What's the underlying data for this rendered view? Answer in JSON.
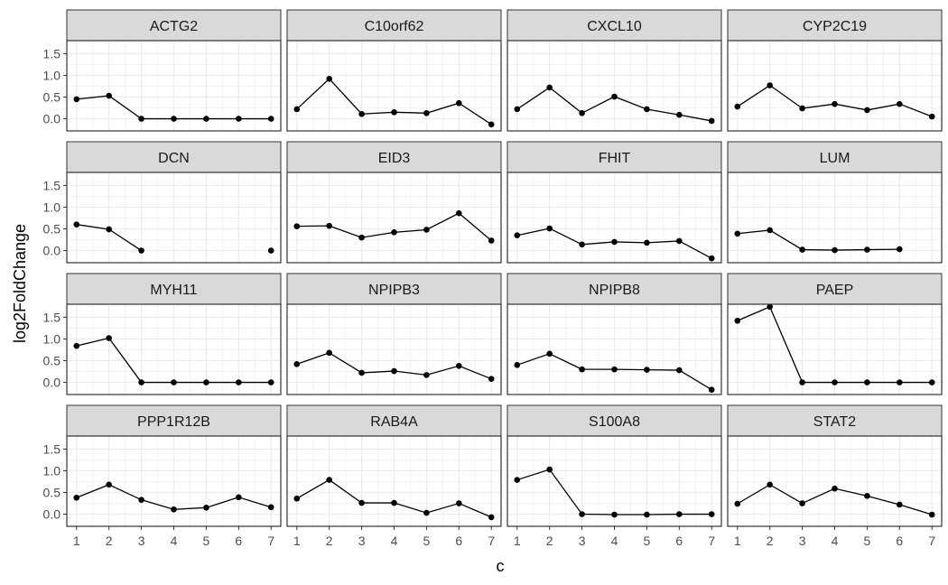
{
  "chart_data": {
    "type": "line",
    "layout": "facet-grid-4x4",
    "xlabel": "c",
    "ylabel": "log2FoldChange",
    "x": [
      1,
      2,
      3,
      4,
      5,
      6,
      7
    ],
    "x_ticks": [
      "1",
      "2",
      "3",
      "4",
      "5",
      "6",
      "7"
    ],
    "y_ticks": [
      "0.0",
      "0.5",
      "1.0",
      "1.5"
    ],
    "y_tick_values": [
      0,
      0.5,
      1.0,
      1.5
    ],
    "xlim": [
      0.7,
      7.3
    ],
    "ylim": [
      -0.28,
      1.8
    ],
    "grid": true,
    "colors": {
      "line": "#000000",
      "strip": "#d9d9d9",
      "grid": "#ebebeb",
      "border": "#333333"
    },
    "series": [
      {
        "name": "ACTG2",
        "values": [
          0.45,
          0.53,
          0.0,
          0.0,
          0.0,
          0.0,
          0.0
        ]
      },
      {
        "name": "C10orf62",
        "values": [
          0.22,
          0.92,
          0.11,
          0.15,
          0.13,
          0.36,
          -0.13
        ]
      },
      {
        "name": "CXCL10",
        "values": [
          0.22,
          0.72,
          0.13,
          0.51,
          0.22,
          0.09,
          -0.05
        ]
      },
      {
        "name": "CYP2C19",
        "values": [
          0.28,
          0.77,
          0.24,
          0.34,
          0.2,
          0.34,
          0.05
        ]
      },
      {
        "name": "DCN",
        "values": [
          0.6,
          0.49,
          0.0,
          null,
          null,
          null,
          0.0
        ]
      },
      {
        "name": "EID3",
        "values": [
          0.56,
          0.57,
          0.3,
          0.42,
          0.48,
          0.86,
          0.23
        ]
      },
      {
        "name": "FHIT",
        "values": [
          0.35,
          0.51,
          0.14,
          0.2,
          0.18,
          0.22,
          -0.18
        ]
      },
      {
        "name": "LUM",
        "values": [
          0.39,
          0.47,
          0.02,
          0.01,
          0.02,
          0.03,
          null
        ]
      },
      {
        "name": "MYH11",
        "values": [
          0.84,
          1.02,
          0.0,
          0.0,
          0.0,
          0.0,
          0.0
        ]
      },
      {
        "name": "NPIPB3",
        "values": [
          0.42,
          0.68,
          0.22,
          0.26,
          0.17,
          0.38,
          0.08
        ]
      },
      {
        "name": "NPIPB8",
        "values": [
          0.4,
          0.66,
          0.3,
          0.3,
          0.29,
          0.28,
          -0.17
        ]
      },
      {
        "name": "PAEP",
        "values": [
          1.42,
          1.74,
          0.0,
          0.0,
          0.0,
          0.0,
          0.0
        ]
      },
      {
        "name": "PPP1R12B",
        "values": [
          0.38,
          0.68,
          0.33,
          0.11,
          0.15,
          0.39,
          0.16
        ]
      },
      {
        "name": "RAB4A",
        "values": [
          0.36,
          0.79,
          0.26,
          0.26,
          0.03,
          0.25,
          -0.07
        ]
      },
      {
        "name": "S100A8",
        "values": [
          0.79,
          1.03,
          0.0,
          -0.01,
          -0.01,
          0.0,
          0.0
        ]
      },
      {
        "name": "STAT2",
        "values": [
          0.24,
          0.68,
          0.25,
          0.59,
          0.42,
          0.22,
          -0.01
        ]
      }
    ]
  }
}
